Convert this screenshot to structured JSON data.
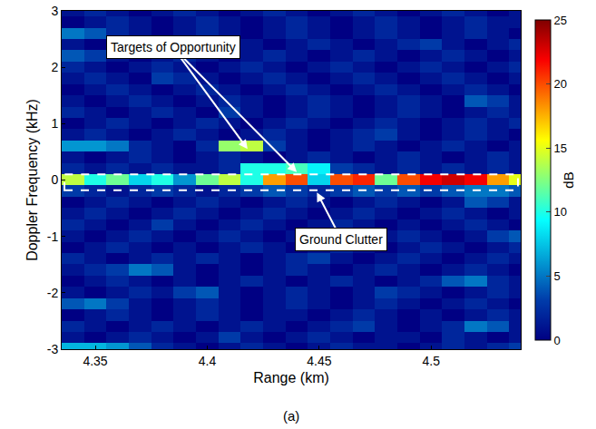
{
  "chart_data": {
    "type": "heatmap",
    "xlabel": "Range (km)",
    "ylabel": "Doppler Frequency (kHz)",
    "caption": "(a)",
    "xlim": [
      4.335,
      4.54
    ],
    "ylim": [
      -3,
      3
    ],
    "xticks": [
      4.35,
      4.4,
      4.45,
      4.5
    ],
    "yticks": [
      -3,
      -2,
      -1,
      0,
      1,
      2,
      3
    ],
    "colorbar_title": "dB",
    "zlim": [
      0,
      25
    ],
    "zticks": [
      0,
      5,
      10,
      15,
      20,
      25
    ],
    "x": [
      4.34,
      4.35,
      4.36,
      4.37,
      4.38,
      4.39,
      4.4,
      4.41,
      4.42,
      4.43,
      4.44,
      4.45,
      4.46,
      4.47,
      4.48,
      4.49,
      4.5,
      4.51,
      4.52,
      4.53,
      4.54
    ],
    "y": [
      -3.0,
      -2.8,
      -2.6,
      -2.4,
      -2.2,
      -2.0,
      -1.8,
      -1.6,
      -1.4,
      -1.2,
      -1.0,
      -0.8,
      -0.6,
      -0.4,
      -0.2,
      0.0,
      0.2,
      0.4,
      0.6,
      0.8,
      1.0,
      1.2,
      1.4,
      1.6,
      1.8,
      2.0,
      2.2,
      2.4,
      2.6,
      2.8,
      3.0
    ],
    "z": [
      [
        7,
        7,
        6,
        4,
        2,
        1,
        0,
        1,
        2,
        1,
        0,
        1,
        2,
        1,
        1,
        0,
        1,
        2,
        1,
        2,
        3
      ],
      [
        1,
        0,
        1,
        2,
        1,
        0,
        1,
        3,
        1,
        0,
        1,
        2,
        1,
        0,
        1,
        1,
        0,
        2,
        1,
        0,
        1
      ],
      [
        2,
        1,
        0,
        1,
        2,
        1,
        0,
        1,
        2,
        1,
        0,
        1,
        2,
        3,
        1,
        0,
        1,
        2,
        5,
        4,
        1
      ],
      [
        0,
        1,
        2,
        1,
        0,
        1,
        2,
        1,
        0,
        1,
        1,
        0,
        1,
        2,
        1,
        0,
        1,
        0,
        1,
        2,
        1
      ],
      [
        4,
        5,
        3,
        1,
        0,
        1,
        2,
        1,
        0,
        1,
        2,
        1,
        0,
        1,
        2,
        1,
        0,
        1,
        2,
        1,
        0
      ],
      [
        1,
        0,
        1,
        2,
        1,
        3,
        4,
        1,
        0,
        1,
        2,
        1,
        0,
        1,
        3,
        2,
        1,
        0,
        1,
        2,
        1
      ],
      [
        0,
        1,
        2,
        1,
        0,
        1,
        0,
        1,
        2,
        1,
        0,
        1,
        2,
        1,
        0,
        1,
        2,
        4,
        5,
        2,
        1
      ],
      [
        1,
        2,
        3,
        5,
        4,
        1,
        0,
        1,
        0,
        1,
        2,
        1,
        0,
        1,
        2,
        1,
        0,
        1,
        2,
        1,
        0
      ],
      [
        2,
        1,
        0,
        1,
        2,
        1,
        2,
        1,
        0,
        1,
        2,
        3,
        1,
        0,
        1,
        2,
        1,
        0,
        1,
        2,
        1
      ],
      [
        0,
        1,
        2,
        1,
        0,
        1,
        0,
        1,
        2,
        1,
        0,
        1,
        2,
        1,
        0,
        1,
        2,
        1,
        0,
        1,
        2
      ],
      [
        1,
        0,
        1,
        2,
        1,
        0,
        1,
        2,
        1,
        0,
        1,
        2,
        1,
        0,
        1,
        2,
        1,
        0,
        1,
        3,
        4
      ],
      [
        2,
        1,
        0,
        1,
        3,
        1,
        0,
        1,
        2,
        1,
        0,
        1,
        2,
        1,
        0,
        1,
        0,
        1,
        2,
        1,
        0
      ],
      [
        1,
        2,
        1,
        0,
        1,
        2,
        1,
        0,
        1,
        2,
        1,
        0,
        1,
        2,
        1,
        0,
        1,
        2,
        1,
        0,
        1
      ],
      [
        0,
        1,
        2,
        1,
        0,
        1,
        2,
        1,
        0,
        1,
        2,
        1,
        0,
        1,
        2,
        1,
        0,
        1,
        4,
        3,
        1
      ],
      [
        3,
        2,
        1,
        2,
        3,
        2,
        1,
        2,
        3,
        4,
        3,
        2,
        3,
        4,
        3,
        4,
        3,
        4,
        5,
        5,
        4
      ],
      [
        14,
        10,
        12,
        8,
        10,
        6,
        12,
        14,
        10,
        18,
        20,
        8,
        20,
        21,
        12,
        20,
        22,
        23,
        22,
        18,
        15
      ],
      [
        2,
        1,
        2,
        1,
        2,
        1,
        1,
        2,
        10,
        10,
        11,
        9,
        3,
        2,
        1,
        2,
        1,
        2,
        1,
        2,
        1
      ],
      [
        1,
        0,
        1,
        2,
        1,
        0,
        1,
        2,
        1,
        0,
        1,
        2,
        1,
        0,
        1,
        2,
        1,
        0,
        1,
        2,
        1
      ],
      [
        6,
        6,
        5,
        2,
        1,
        0,
        2,
        13,
        14,
        3,
        1,
        0,
        1,
        2,
        1,
        0,
        1,
        2,
        1,
        0,
        1
      ],
      [
        1,
        2,
        1,
        0,
        1,
        2,
        1,
        0,
        1,
        2,
        1,
        0,
        1,
        2,
        3,
        1,
        0,
        1,
        2,
        1,
        0
      ],
      [
        0,
        1,
        2,
        1,
        0,
        1,
        2,
        1,
        0,
        1,
        2,
        1,
        0,
        1,
        2,
        1,
        0,
        1,
        2,
        1,
        2
      ],
      [
        2,
        1,
        0,
        1,
        2,
        1,
        0,
        3,
        1,
        0,
        1,
        2,
        1,
        0,
        1,
        2,
        1,
        0,
        1,
        2,
        1
      ],
      [
        1,
        0,
        1,
        2,
        1,
        0,
        1,
        2,
        1,
        0,
        1,
        2,
        1,
        0,
        1,
        2,
        1,
        0,
        4,
        3,
        1
      ],
      [
        0,
        1,
        2,
        1,
        0,
        1,
        2,
        1,
        0,
        1,
        2,
        1,
        0,
        1,
        2,
        1,
        0,
        1,
        2,
        1,
        0
      ],
      [
        1,
        2,
        1,
        0,
        3,
        2,
        1,
        0,
        1,
        2,
        1,
        0,
        1,
        2,
        1,
        0,
        1,
        2,
        1,
        0,
        1
      ],
      [
        2,
        1,
        0,
        1,
        2,
        1,
        0,
        1,
        2,
        1,
        0,
        1,
        2,
        1,
        0,
        1,
        2,
        1,
        0,
        1,
        2
      ],
      [
        4,
        3,
        1,
        0,
        1,
        2,
        1,
        0,
        1,
        2,
        1,
        0,
        1,
        2,
        1,
        0,
        1,
        2,
        1,
        0,
        1
      ],
      [
        1,
        0,
        1,
        2,
        1,
        0,
        1,
        2,
        1,
        0,
        1,
        2,
        1,
        0,
        1,
        2,
        3,
        1,
        0,
        1,
        2
      ],
      [
        5,
        4,
        2,
        1,
        0,
        1,
        2,
        1,
        0,
        1,
        2,
        1,
        0,
        1,
        2,
        1,
        0,
        1,
        2,
        1,
        0
      ],
      [
        0,
        1,
        2,
        1,
        0,
        1,
        2,
        1,
        0,
        1,
        2,
        1,
        0,
        1,
        2,
        1,
        0,
        1,
        2,
        1,
        1
      ],
      [
        1,
        2,
        1,
        0,
        1,
        2,
        1,
        0,
        1,
        2,
        1,
        0,
        1,
        2,
        1,
        0,
        1,
        2,
        1,
        0,
        1
      ]
    ],
    "annotations": [
      {
        "text": "Targets of Opportunity",
        "points": [
          {
            "x": 4.418,
            "y": 0.55
          },
          {
            "x": 4.44,
            "y": 0.14
          }
        ]
      },
      {
        "text": "Ground Clutter",
        "points": [
          {
            "x": 4.449,
            "y": -0.22
          }
        ],
        "band": [
          -0.18,
          0.1
        ]
      }
    ]
  }
}
